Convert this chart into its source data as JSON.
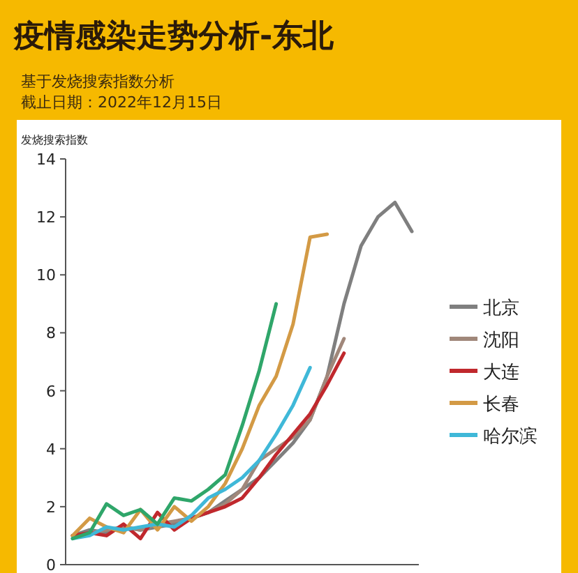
{
  "chart_data": {
    "type": "line",
    "title": "疫情感染走势分析-东北",
    "subtitle": "基于发烧搜索指数分析",
    "annotations": [
      "截止日期：2022年12月15日"
    ],
    "ylabel": "发烧搜索指数",
    "ylim": [
      0,
      14
    ],
    "yticks": [
      0,
      2,
      4,
      6,
      8,
      10,
      12,
      14
    ],
    "legend": "right",
    "categories": [
      null,
      null,
      null,
      null,
      null,
      null,
      null,
      null,
      null,
      null,
      null,
      null,
      null,
      null,
      null,
      null,
      null,
      null,
      null,
      null,
      null
    ],
    "series": [
      {
        "name": "北京",
        "color": "#7f7f7f",
        "values": [
          1.0,
          1.2,
          1.1,
          1.3,
          1.2,
          1.3,
          1.4,
          1.6,
          1.8,
          2.2,
          2.6,
          3.0,
          3.6,
          4.2,
          5.0,
          6.5,
          9.0,
          11.0,
          12.0,
          12.5,
          11.5
        ]
      },
      {
        "name": "沈阳",
        "color": "#a0877a",
        "values": [
          1.0,
          1.1,
          1.2,
          1.3,
          1.2,
          1.4,
          1.5,
          1.6,
          1.8,
          2.1,
          2.6,
          3.6,
          4.0,
          4.4,
          5.0,
          6.5,
          7.8,
          null,
          null,
          null,
          null
        ]
      },
      {
        "name": "大连",
        "color": "#c0282d",
        "values": [
          1.0,
          1.1,
          1.0,
          1.4,
          0.9,
          1.8,
          1.2,
          1.6,
          1.8,
          2.0,
          2.3,
          3.0,
          3.8,
          4.5,
          5.2,
          6.2,
          7.3,
          null,
          null,
          null,
          null
        ]
      },
      {
        "name": "长春",
        "color": "#d39a45",
        "values": [
          1.0,
          1.6,
          1.3,
          1.1,
          1.9,
          1.2,
          2.0,
          1.5,
          2.0,
          2.8,
          4.0,
          5.5,
          6.5,
          8.3,
          11.3,
          11.4,
          null,
          null,
          null,
          null,
          null
        ]
      },
      {
        "name": "哈尔滨",
        "color": "#3fb8d8",
        "values": [
          0.9,
          1.0,
          1.3,
          1.2,
          1.3,
          1.4,
          1.3,
          1.7,
          2.3,
          2.6,
          3.0,
          3.6,
          4.5,
          5.5,
          6.8,
          null,
          null,
          null,
          null,
          null,
          null
        ]
      },
      {
        "color": "#2fa66a",
        "values": [
          0.9,
          1.1,
          2.1,
          1.7,
          1.9,
          1.4,
          2.3,
          2.2,
          2.6,
          3.1,
          4.8,
          6.7,
          9.0,
          null,
          null,
          null,
          null,
          null,
          null,
          null,
          null
        ]
      }
    ]
  }
}
